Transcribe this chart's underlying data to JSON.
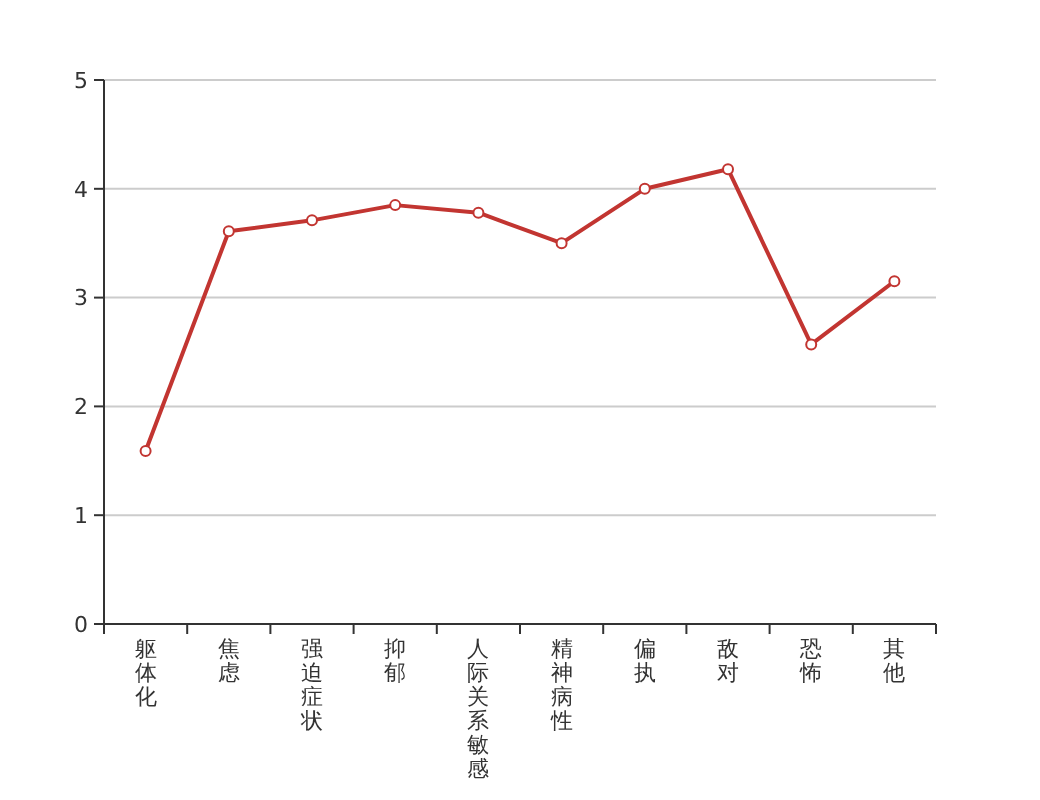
{
  "chart_data": {
    "type": "line",
    "categories": [
      "躯体化",
      "焦虑",
      "强迫症状",
      "抑郁",
      "人际关系敏感",
      "精神病性",
      "偏执",
      "敌对",
      "恐怖",
      "其他"
    ],
    "series": [
      {
        "color": "#c23531",
        "values": [
          1.59,
          3.61,
          3.71,
          3.85,
          3.78,
          3.5,
          4.0,
          4.18,
          2.57,
          3.15
        ]
      }
    ],
    "ylim": [
      0,
      5
    ],
    "yticks": [
      0,
      1,
      2,
      3,
      4,
      5
    ],
    "grid": "y",
    "marker": "circle",
    "line_style": "solid"
  }
}
